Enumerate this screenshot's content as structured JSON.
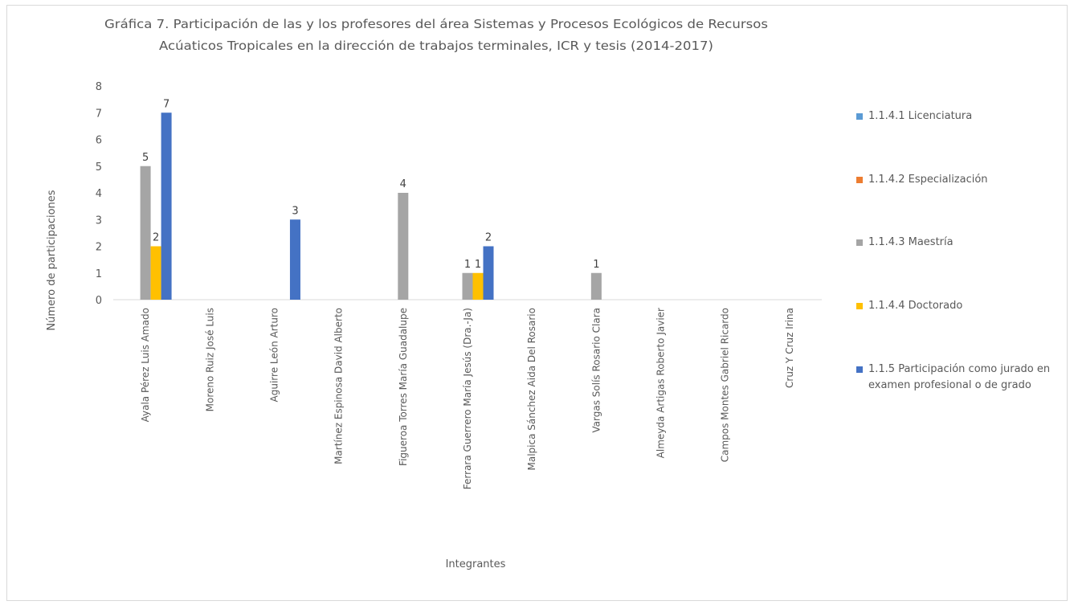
{
  "chart_data": {
    "type": "bar",
    "title_line1": "Gráfica 7. Participación de las y los profesores del área Sistemas y Procesos Ecológicos de Recursos",
    "title_line2": "Acúaticos Tropicales en la dirección de trabajos terminales, ICR y tesis (2014-2017)",
    "xlabel": "Integrantes",
    "ylabel": "Número de participaciones",
    "ylim": [
      0,
      8
    ],
    "yticks": [
      0,
      1,
      2,
      3,
      4,
      5,
      6,
      7,
      8
    ],
    "categories": [
      "Ayala Pérez Luis Amado",
      "Moreno Ruiz José Luis",
      "Aguirre León Arturo",
      "Martínez Espinosa David Alberto",
      "Figueroa Torres María Guadalupe",
      "Ferrara Guerrero María Jesús (Dra.-Ja)",
      "Malpica Sánchez Aida Del Rosario",
      "Vargas Solís Rosario Clara",
      "Almeyda Artigas Roberto Javier",
      "Campos Montes Gabriel Ricardo",
      "Cruz Y Cruz Irina"
    ],
    "series": [
      {
        "name": "1.1.4.1 Licenciatura",
        "color": "#5b9bd5",
        "values": [
          0,
          0,
          0,
          0,
          0,
          0,
          0,
          0,
          0,
          0,
          0
        ]
      },
      {
        "name": "1.1.4.2 Especialización",
        "color": "#ed7d31",
        "values": [
          0,
          0,
          0,
          0,
          0,
          0,
          0,
          0,
          0,
          0,
          0
        ]
      },
      {
        "name": "1.1.4.3 Maestría",
        "color": "#a5a5a5",
        "values": [
          5,
          0,
          0,
          0,
          4,
          1,
          0,
          1,
          0,
          0,
          0
        ]
      },
      {
        "name": "1.1.4.4 Doctorado",
        "color": "#ffc000",
        "values": [
          2,
          0,
          0,
          0,
          0,
          1,
          0,
          0,
          0,
          0,
          0
        ]
      },
      {
        "name": "1.1.5 Participación como jurado en examen profesional o de grado",
        "color": "#4472c4",
        "values": [
          7,
          0,
          3,
          0,
          0,
          2,
          0,
          0,
          0,
          0,
          0
        ]
      }
    ],
    "legend_position": "right",
    "grid": false
  }
}
